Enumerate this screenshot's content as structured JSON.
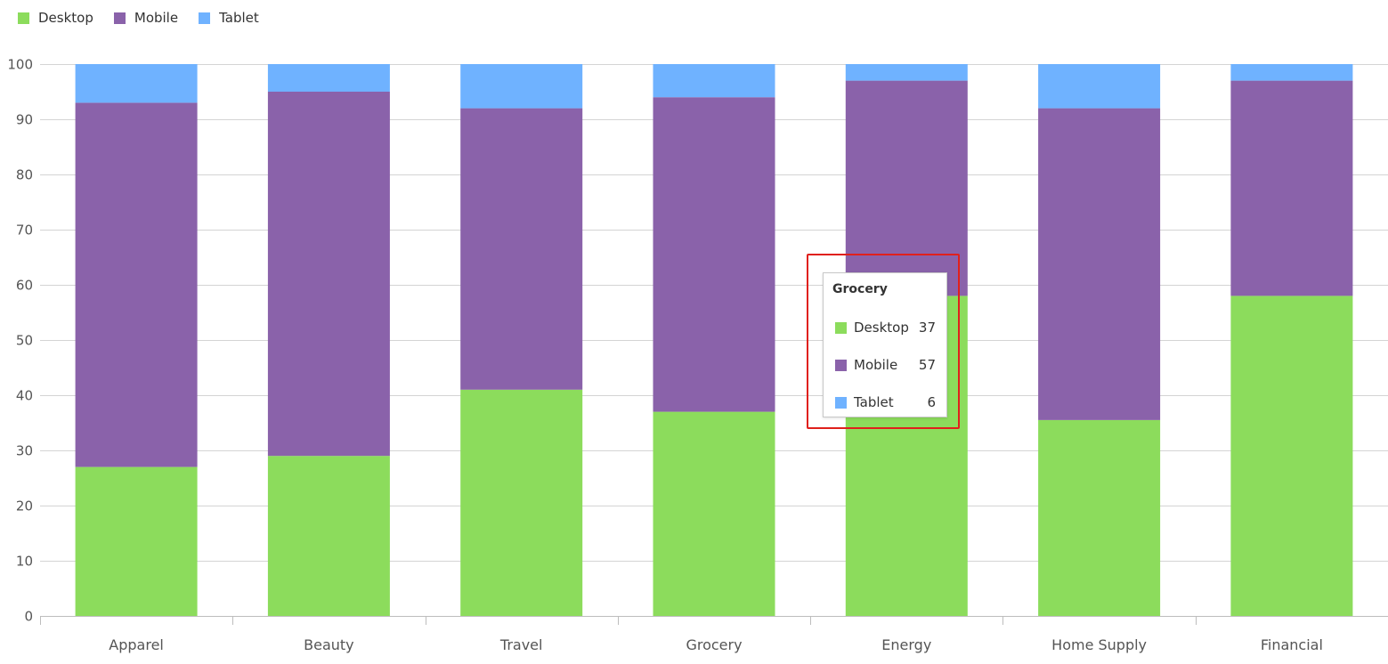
{
  "colors": {
    "desktop": "#8cdc5c",
    "mobile": "#8a62aa",
    "tablet": "#6fb2ff",
    "grid": "#d4d4d4",
    "axis_text": "#555555",
    "highlight": "#e0201c"
  },
  "legend": [
    {
      "label": "Desktop",
      "color": "#8cdc5c"
    },
    {
      "label": "Mobile",
      "color": "#8a62aa"
    },
    {
      "label": "Tablet",
      "color": "#6fb2ff"
    }
  ],
  "chart_data": {
    "type": "bar",
    "stacked": true,
    "categories": [
      "Apparel",
      "Beauty",
      "Travel",
      "Grocery",
      "Energy",
      "Home Supply",
      "Financial"
    ],
    "series": [
      {
        "name": "Desktop",
        "color": "#8cdc5c",
        "values": [
          27,
          29,
          41,
          37,
          58,
          35.5,
          58
        ]
      },
      {
        "name": "Mobile",
        "color": "#8a62aa",
        "values": [
          66,
          66,
          51,
          57,
          39,
          56.5,
          39
        ]
      },
      {
        "name": "Tablet",
        "color": "#6fb2ff",
        "values": [
          7,
          5,
          8,
          6,
          3,
          8,
          3
        ]
      }
    ],
    "ylim": [
      0,
      100
    ],
    "yticks": [
      0,
      10,
      20,
      30,
      40,
      50,
      60,
      70,
      80,
      90,
      100
    ],
    "grid": true,
    "legend_position": "top-left"
  },
  "tooltip": {
    "title": "Grocery",
    "rows": [
      {
        "label": "Desktop",
        "value": "37",
        "color": "#8cdc5c"
      },
      {
        "label": "Mobile",
        "value": "57",
        "color": "#8a62aa"
      },
      {
        "label": "Tablet",
        "value": "6",
        "color": "#6fb2ff"
      }
    ]
  }
}
